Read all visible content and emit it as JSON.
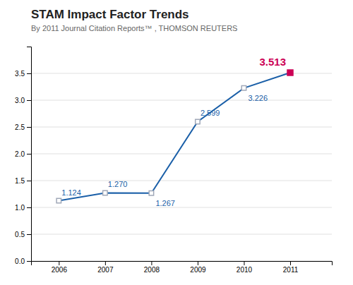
{
  "chart_data": {
    "type": "line",
    "title": "STAM Impact Factor Trends",
    "subtitle": "By 2011 Journal Citation Reports™ , THOMSON REUTERS",
    "x": [
      2006,
      2007,
      2008,
      2009,
      2010,
      2011
    ],
    "values": [
      1.124,
      1.27,
      1.267,
      2.599,
      3.226,
      3.513
    ],
    "value_labels": [
      "1.124",
      "1.270",
      "1.267",
      "2.599",
      "3.226",
      "3.513"
    ],
    "data_labels": true,
    "color": "#1a5fa8",
    "colors": [
      "#a0a8b8",
      "#a0a8b8",
      "#a0a8b8",
      "#a0a8b8",
      "#a0a8b8",
      "#cc0055"
    ],
    "marker": "square",
    "xlim": [
      2005.4,
      2011.9
    ],
    "xticks": [
      2006,
      2007,
      2008,
      2009,
      2010,
      2011
    ],
    "ylim": [
      0.0,
      4.0
    ],
    "yticks": [
      {
        "value": 0.0,
        "label": "0.0"
      },
      0.5,
      {
        "value": 1.0,
        "label": "1.0"
      },
      1.5,
      {
        "value": 2.0,
        "label": "2.0"
      },
      2.5,
      {
        "value": 3.0,
        "label": "3.0"
      },
      3.5
    ],
    "grid": true
  }
}
